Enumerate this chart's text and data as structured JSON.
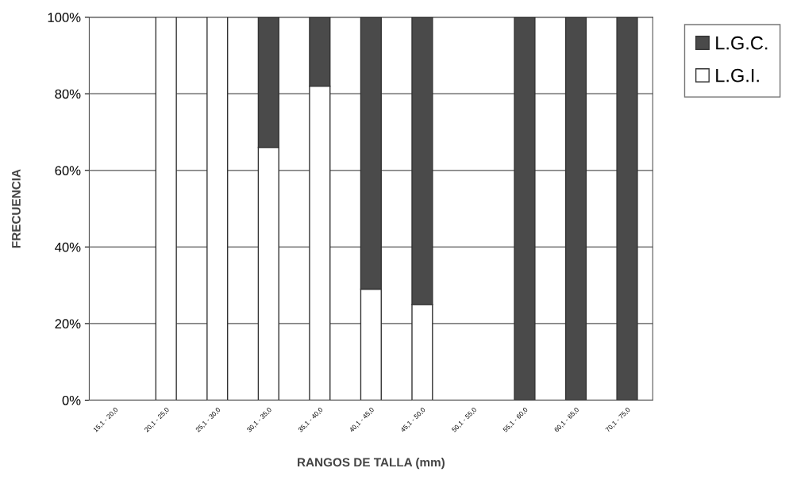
{
  "chart_data": {
    "type": "bar",
    "stacked": true,
    "xlabel": "RANGOS DE TALLA (mm)",
    "ylabel": "FRECUENCIA",
    "categories": [
      "15,1 - 20,0",
      "20,1 - 25,0",
      "25,1 - 30,0",
      "30,1 - 35,0",
      "35,1 - 40,0",
      "40,1 - 45,0",
      "45,1 - 50,0",
      "50,1 - 55,0",
      "55,1 - 60,0",
      "60,1 - 65,0",
      "70,1 - 75,0"
    ],
    "series": [
      {
        "name": "L.G.I.",
        "color": "#ffffff",
        "values": [
          0,
          100,
          100,
          66,
          82,
          29,
          25,
          0,
          0,
          0,
          0
        ]
      },
      {
        "name": "L.G.C.",
        "color": "#4a4a4a",
        "values": [
          0,
          0,
          0,
          34,
          18,
          71,
          75,
          0,
          100,
          100,
          100
        ]
      }
    ],
    "ylim": [
      0,
      100
    ],
    "yticks": [
      {
        "value": 0,
        "label": "0%"
      },
      {
        "value": 20,
        "label": "20%"
      },
      {
        "value": 40,
        "label": "40%"
      },
      {
        "value": 60,
        "label": "60%"
      },
      {
        "value": 80,
        "label": "80%"
      },
      {
        "value": 100,
        "label": "100%"
      }
    ],
    "grid": "y",
    "legend": "top right"
  }
}
